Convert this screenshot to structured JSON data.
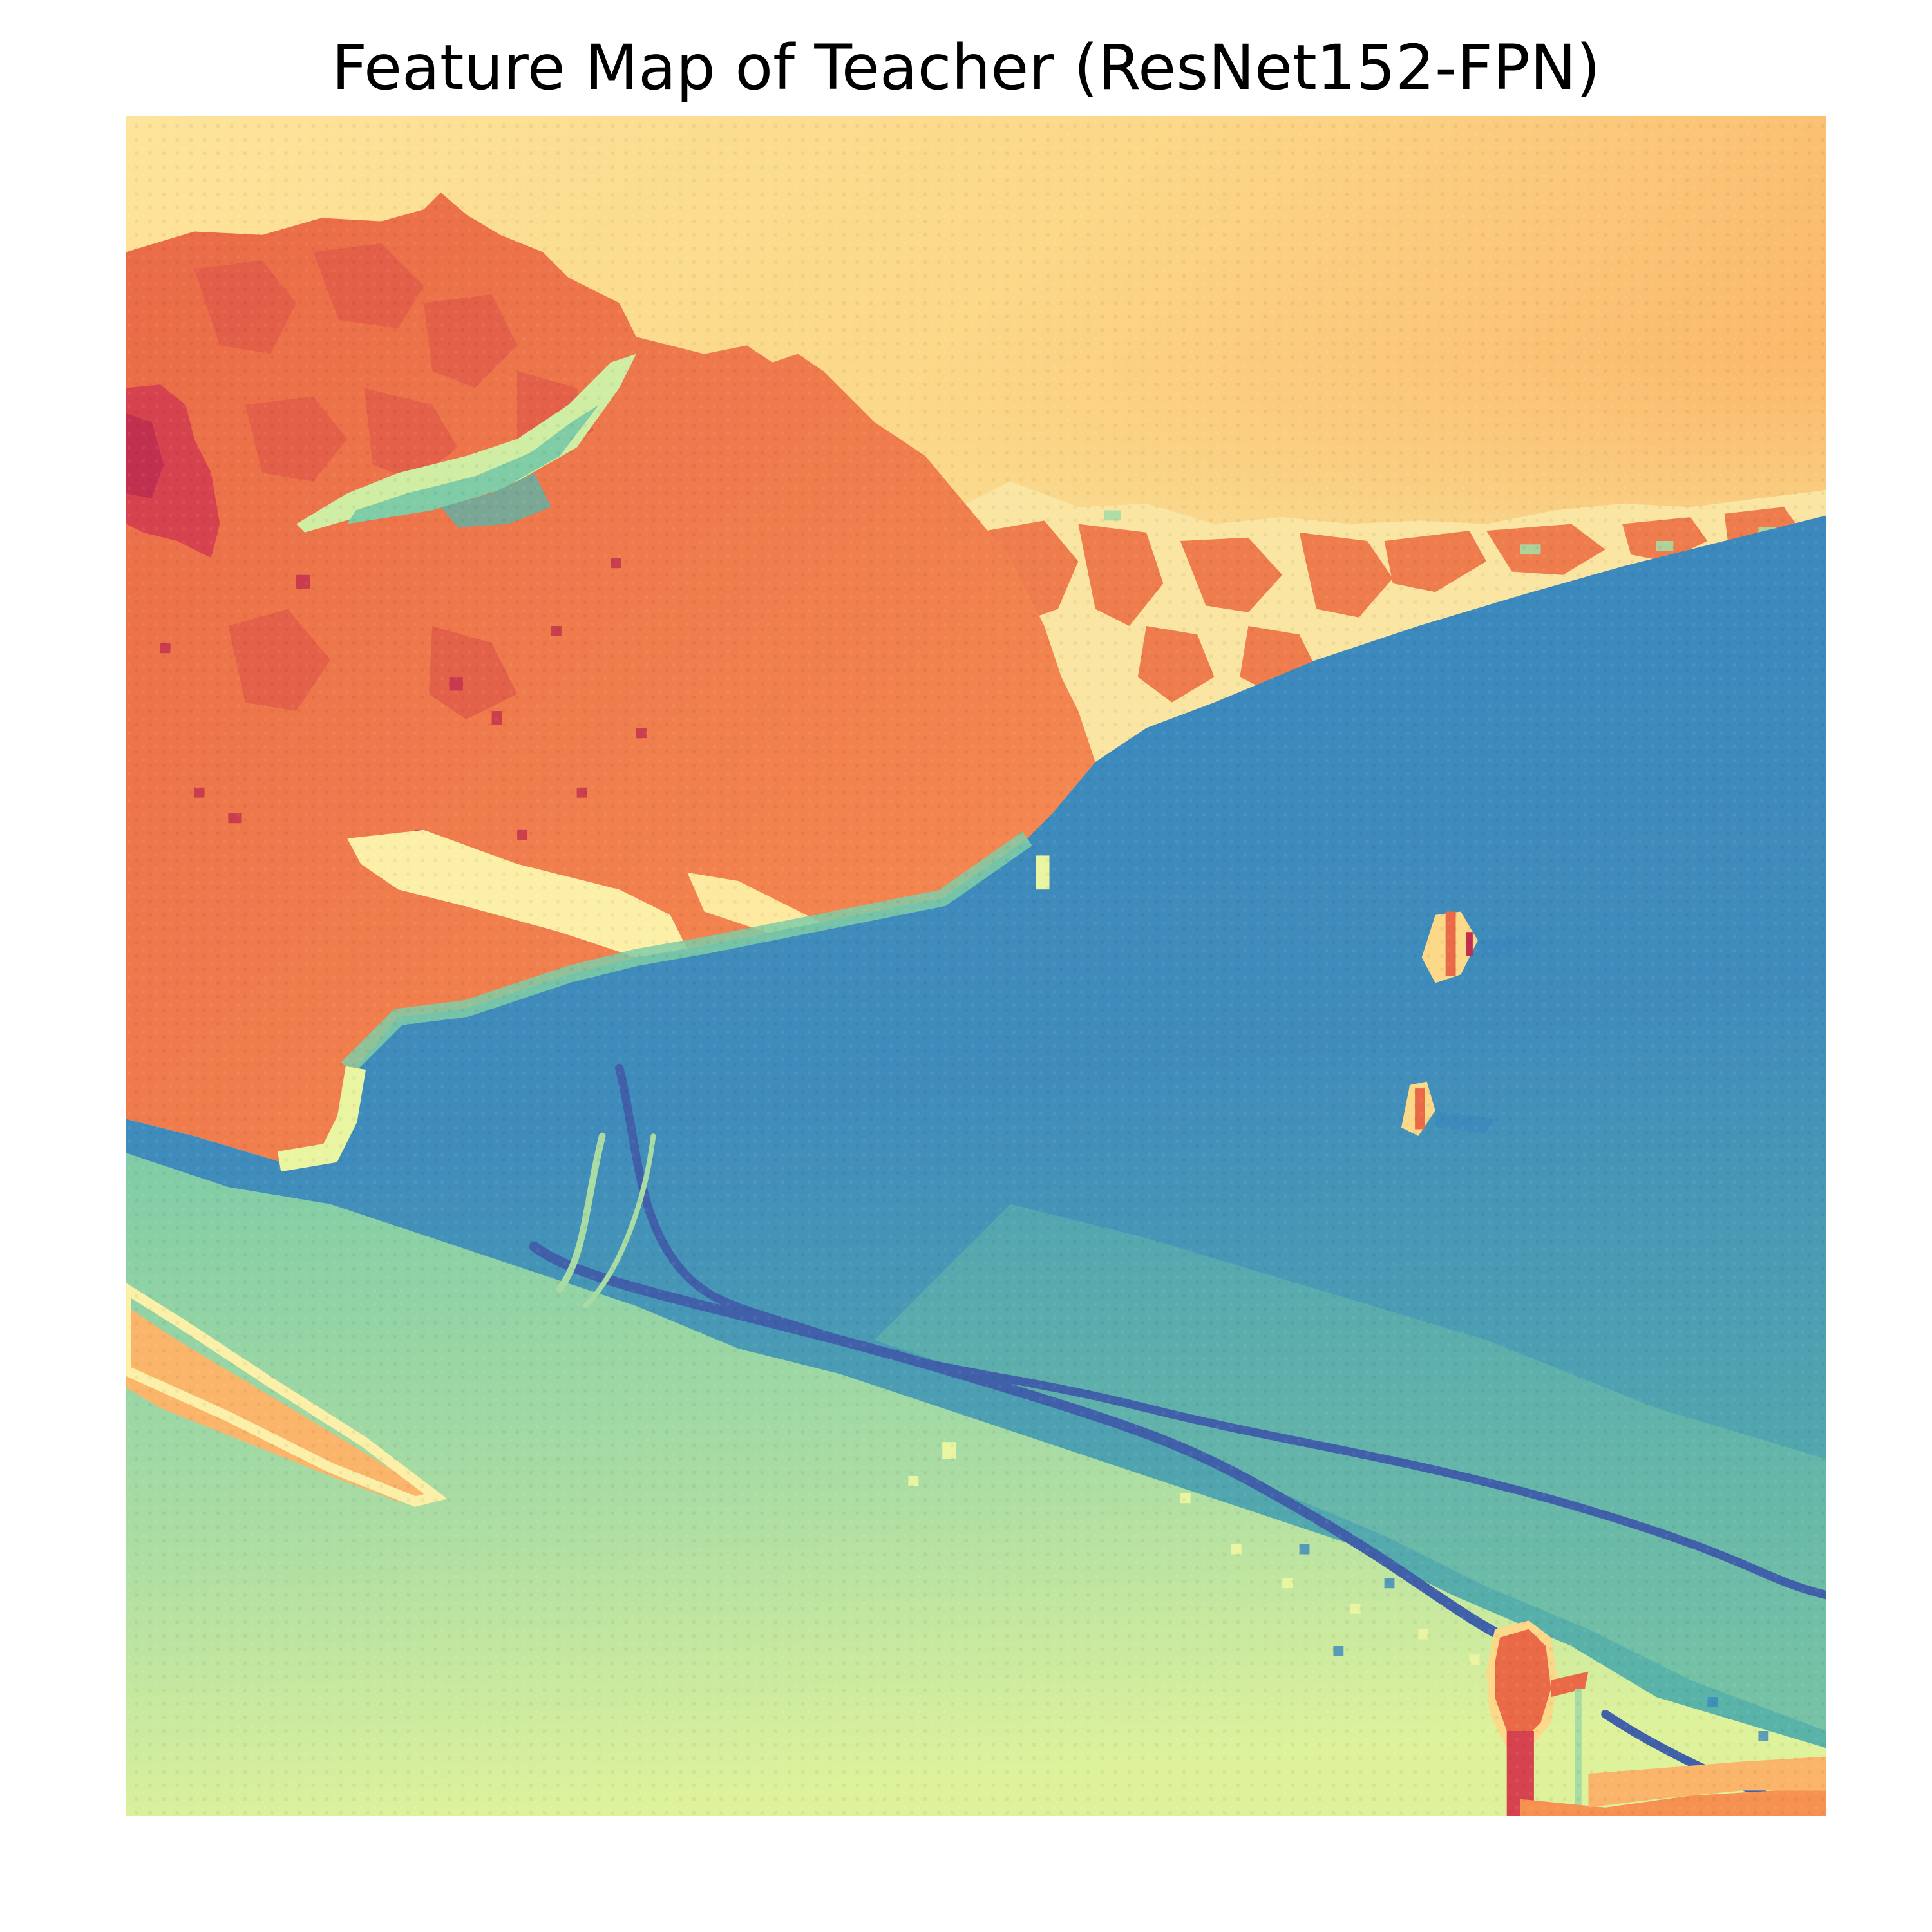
{
  "figure": {
    "title": "Feature Map of Teacher (ResNet152-FPN)",
    "colormap": "Spectral"
  },
  "colors": {
    "high_red": "#c2304f",
    "red_orange": "#ea6a47",
    "orange": "#f79152",
    "light_orange": "#fcc57a",
    "pale_yellow": "#fcf4b0",
    "yellow_green": "#eaf5a2",
    "light_green": "#a8dca4",
    "teal": "#5db4a8",
    "blue": "#3a87be",
    "dark_blue": "#4060aa"
  },
  "image_content": {
    "description_layers": [
      "sky",
      "mountains",
      "snow-slope",
      "ski-tracks",
      "skier"
    ]
  }
}
